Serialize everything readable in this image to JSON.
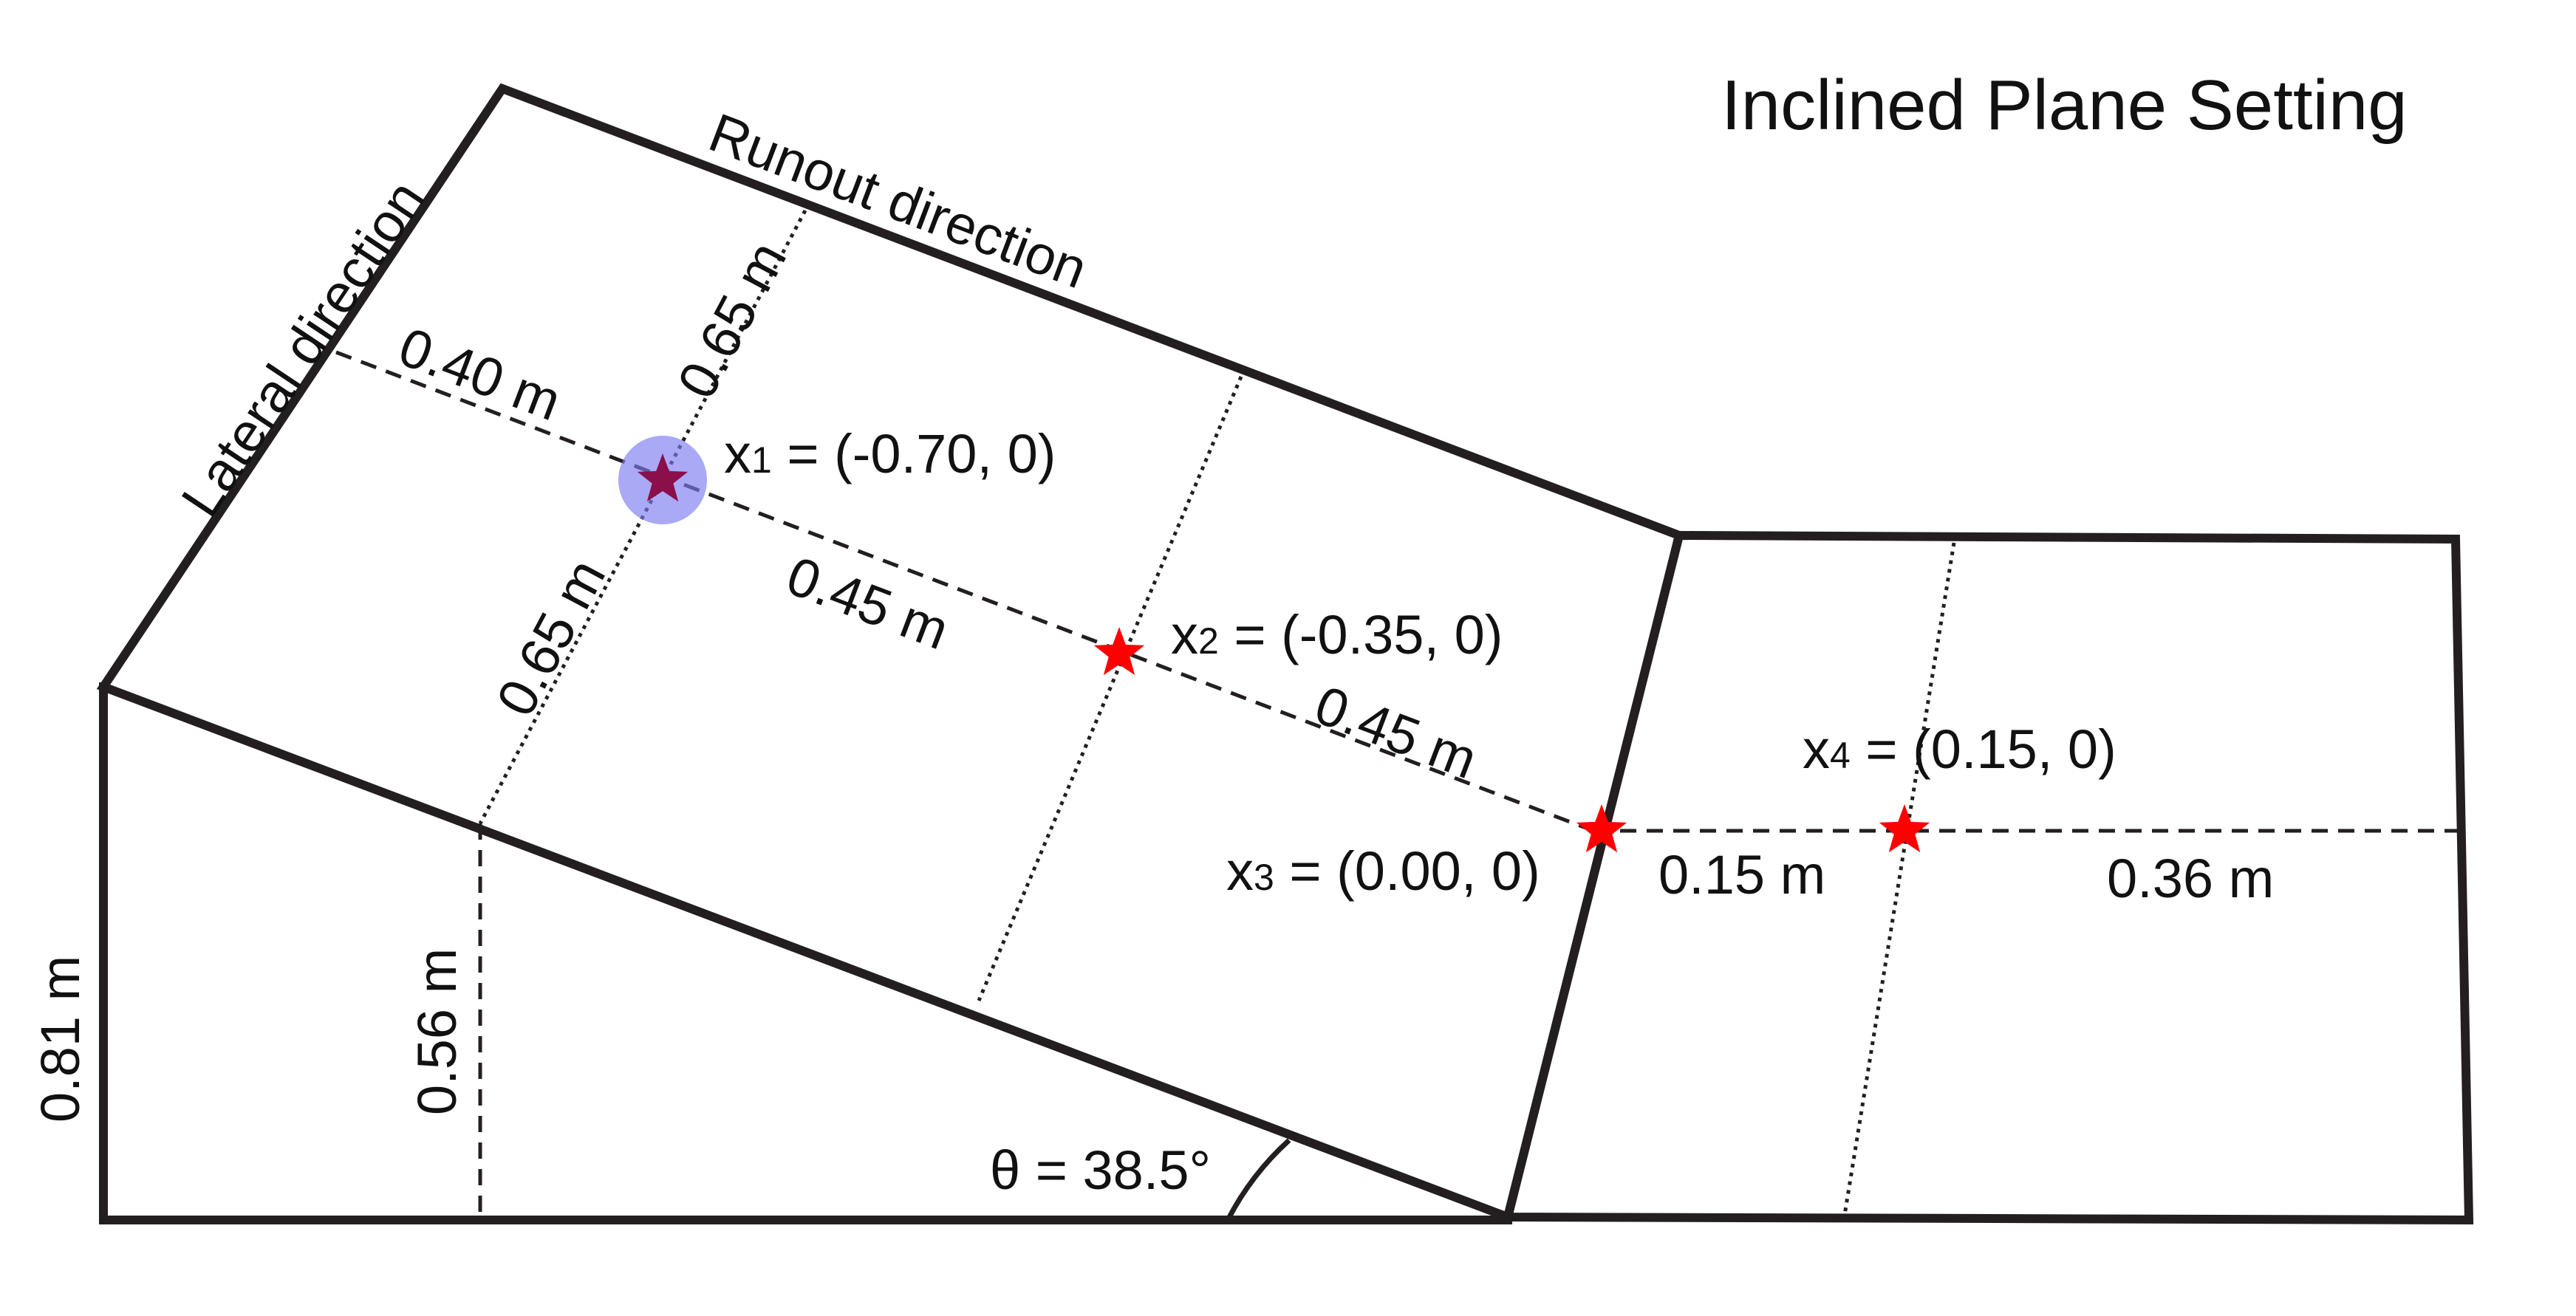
{
  "title": "Inclined Plane Setting",
  "directions": {
    "runout": "Runout direction",
    "lateral": "Lateral direction"
  },
  "dimensions": {
    "d_040": "0.40 m",
    "d_065_upper": "0.65 m",
    "d_065_lower": "0.65 m",
    "d_045_a": "0.45 m",
    "d_045_b": "0.45 m",
    "d_015": "0.15 m",
    "d_036": "0.36 m",
    "d_056": "0.56 m",
    "d_081": "0.81 m"
  },
  "angle": {
    "label": "θ = 38.5°",
    "value_deg": 38.5
  },
  "points": [
    {
      "sub": "1",
      "rest": " = (-0.70, 0)",
      "runout": -0.7,
      "lateral": 0,
      "highlighted": true
    },
    {
      "sub": "2",
      "rest": " = (-0.35, 0)",
      "runout": -0.35,
      "lateral": 0,
      "highlighted": false
    },
    {
      "sub": "3",
      "rest": " = (0.00, 0)",
      "runout": 0.0,
      "lateral": 0,
      "highlighted": false
    },
    {
      "sub": "4",
      "rest": " = (0.15, 0)",
      "runout": 0.15,
      "lateral": 0,
      "highlighted": false
    }
  ],
  "point_prefix": "x",
  "colors": {
    "outline": "#231f20",
    "star": "#ff0000",
    "highlight": "#7b7bf0",
    "highlight_star": "#8a0f4a"
  }
}
